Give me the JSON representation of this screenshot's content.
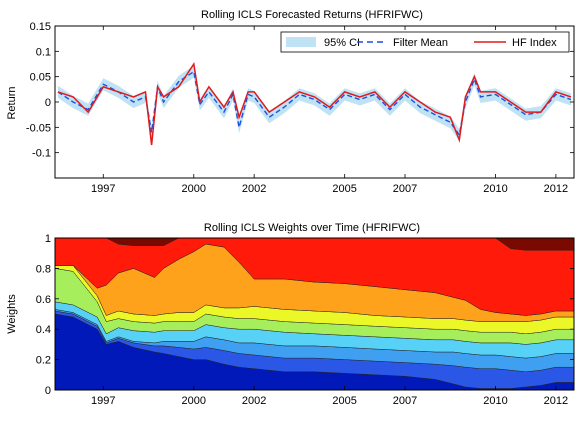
{
  "chart_data": [
    {
      "type": "line",
      "title": "Rolling ICLS Forecasted Returns (HFRIFWC)",
      "ylabel": "Return",
      "xlim": [
        1995.4,
        2012.6
      ],
      "ylim": [
        -0.15,
        0.15
      ],
      "yticks": [
        -0.1,
        -0.05,
        0,
        0.05,
        0.1,
        0.15
      ],
      "ytick_labels": [
        "-0.1",
        "-0.05",
        "0",
        "0.05",
        "0.1",
        "0.15"
      ],
      "xticks": [
        1997.0,
        2000.0,
        2002.0,
        2005.0,
        2007.0,
        2010.0,
        2012.0
      ],
      "xtick_labels": [
        "1997",
        "2000",
        "2002",
        "2005",
        "2007",
        "2010",
        "2012"
      ],
      "legend": {
        "position": "top-right",
        "entries": [
          "95% CI",
          "Filter Mean",
          "HF Index"
        ]
      },
      "colors": {
        "ci": "#bfe3f5",
        "filter_mean": "#1f4fe0",
        "hf_index": "#e01b1b"
      },
      "x": [
        1995.5,
        1996.0,
        1996.5,
        1997.0,
        1997.5,
        1998.0,
        1998.4,
        1998.6,
        1998.8,
        1999.0,
        1999.5,
        2000.0,
        2000.2,
        2000.5,
        2001.0,
        2001.3,
        2001.5,
        2001.8,
        2002.0,
        2002.5,
        2003.0,
        2003.5,
        2004.0,
        2004.5,
        2005.0,
        2005.5,
        2006.0,
        2006.5,
        2007.0,
        2007.5,
        2008.0,
        2008.5,
        2008.8,
        2009.0,
        2009.3,
        2009.5,
        2010.0,
        2010.5,
        2011.0,
        2011.5,
        2012.0,
        2012.5
      ],
      "series": [
        {
          "name": "HF Index",
          "values": [
            0.02,
            0.01,
            -0.02,
            0.03,
            0.02,
            0.01,
            0.02,
            -0.085,
            0.03,
            0.01,
            0.03,
            0.075,
            0.0,
            0.03,
            -0.01,
            0.02,
            -0.03,
            0.02,
            0.02,
            -0.02,
            0.0,
            0.02,
            0.01,
            -0.01,
            0.02,
            0.01,
            0.02,
            -0.01,
            0.02,
            0.0,
            -0.02,
            -0.03,
            -0.075,
            0.01,
            0.05,
            0.02,
            0.02,
            0.0,
            -0.02,
            -0.02,
            0.02,
            0.01
          ]
        },
        {
          "name": "Filter Mean",
          "values": [
            0.02,
            0.0,
            -0.015,
            0.035,
            0.02,
            0.0,
            0.01,
            -0.06,
            0.03,
            0.0,
            0.04,
            0.06,
            -0.005,
            0.02,
            -0.02,
            0.015,
            -0.05,
            0.015,
            0.01,
            -0.03,
            -0.01,
            0.015,
            0.005,
            -0.015,
            0.015,
            0.005,
            0.015,
            -0.015,
            0.015,
            -0.01,
            -0.025,
            -0.04,
            -0.065,
            0.0,
            0.045,
            0.01,
            0.015,
            -0.005,
            -0.025,
            -0.02,
            0.015,
            0.005
          ]
        }
      ],
      "ci_halfwidth": 0.012
    },
    {
      "type": "area",
      "stacked": true,
      "title": "Rolling ICLS Weights over Time (HFRIFWC)",
      "ylabel": "Weights",
      "xlim": [
        1995.4,
        2012.6
      ],
      "ylim": [
        0,
        1
      ],
      "yticks": [
        0,
        0.2,
        0.4,
        0.6,
        0.8,
        1
      ],
      "ytick_labels": [
        "0",
        "0.2",
        "0.4",
        "0.6",
        "0.8",
        "1"
      ],
      "xticks": [
        1997.0,
        2000.0,
        2002.0,
        2005.0,
        2007.0,
        2010.0,
        2012.0
      ],
      "xtick_labels": [
        "1997",
        "2000",
        "2002",
        "2005",
        "2007",
        "2010",
        "2012"
      ],
      "x": [
        1995.4,
        1996.0,
        1996.8,
        1997.1,
        1997.5,
        1998.0,
        1998.7,
        1999.0,
        1999.5,
        2000.0,
        2000.4,
        2001.0,
        2001.5,
        2002.0,
        2003.0,
        2004.0,
        2005.0,
        2006.0,
        2007.0,
        2008.0,
        2008.6,
        2009.0,
        2009.5,
        2010.0,
        2010.5,
        2011.0,
        2011.5,
        2012.0,
        2012.6
      ],
      "colors": [
        "#0019b8",
        "#2a57e6",
        "#3fa0f2",
        "#58d1f7",
        "#a6ee5c",
        "#ecf728",
        "#ffa21b",
        "#ff1a0a",
        "#7a0a00"
      ],
      "layers": [
        [
          0.5,
          0.48,
          0.4,
          0.3,
          0.32,
          0.28,
          0.25,
          0.24,
          0.22,
          0.2,
          0.2,
          0.17,
          0.15,
          0.14,
          0.12,
          0.12,
          0.11,
          0.1,
          0.09,
          0.07,
          0.04,
          0.02,
          0.01,
          0.01,
          0.01,
          0.02,
          0.03,
          0.05,
          0.05
        ],
        [
          0.02,
          0.02,
          0.02,
          0.01,
          0.02,
          0.03,
          0.04,
          0.05,
          0.06,
          0.07,
          0.08,
          0.09,
          0.09,
          0.09,
          0.09,
          0.09,
          0.09,
          0.09,
          0.09,
          0.1,
          0.12,
          0.13,
          0.13,
          0.13,
          0.12,
          0.1,
          0.1,
          0.1,
          0.1
        ],
        [
          0.01,
          0.01,
          0.01,
          0.01,
          0.01,
          0.01,
          0.02,
          0.03,
          0.04,
          0.05,
          0.07,
          0.07,
          0.07,
          0.08,
          0.08,
          0.08,
          0.08,
          0.08,
          0.08,
          0.08,
          0.09,
          0.09,
          0.09,
          0.09,
          0.09,
          0.09,
          0.09,
          0.09,
          0.09
        ],
        [
          0.05,
          0.05,
          0.05,
          0.05,
          0.06,
          0.07,
          0.07,
          0.07,
          0.07,
          0.07,
          0.08,
          0.08,
          0.09,
          0.09,
          0.09,
          0.08,
          0.08,
          0.08,
          0.08,
          0.08,
          0.08,
          0.08,
          0.08,
          0.08,
          0.09,
          0.09,
          0.09,
          0.09,
          0.09
        ],
        [
          0.22,
          0.22,
          0.1,
          0.08,
          0.06,
          0.06,
          0.06,
          0.06,
          0.06,
          0.06,
          0.07,
          0.07,
          0.07,
          0.07,
          0.07,
          0.07,
          0.07,
          0.07,
          0.07,
          0.07,
          0.07,
          0.07,
          0.07,
          0.07,
          0.07,
          0.07,
          0.07,
          0.07,
          0.07
        ],
        [
          0.02,
          0.04,
          0.04,
          0.04,
          0.05,
          0.05,
          0.05,
          0.05,
          0.06,
          0.06,
          0.06,
          0.06,
          0.07,
          0.08,
          0.08,
          0.08,
          0.08,
          0.07,
          0.07,
          0.07,
          0.07,
          0.07,
          0.07,
          0.07,
          0.07,
          0.08,
          0.08,
          0.08,
          0.08
        ],
        [
          0.0,
          0.0,
          0.05,
          0.2,
          0.25,
          0.3,
          0.25,
          0.3,
          0.35,
          0.4,
          0.4,
          0.4,
          0.3,
          0.18,
          0.2,
          0.19,
          0.19,
          0.19,
          0.18,
          0.17,
          0.14,
          0.13,
          0.08,
          0.06,
          0.05,
          0.04,
          0.04,
          0.04,
          0.04
        ],
        [
          0.18,
          0.18,
          0.33,
          0.31,
          0.19,
          0.15,
          0.21,
          0.15,
          0.14,
          0.09,
          0.04,
          0.06,
          0.16,
          0.27,
          0.27,
          0.29,
          0.3,
          0.32,
          0.36,
          0.36,
          0.39,
          0.41,
          0.47,
          0.49,
          0.43,
          0.43,
          0.42,
          0.4,
          0.4
        ],
        [
          0.0,
          0.0,
          0.0,
          0.0,
          0.04,
          0.05,
          0.05,
          0.05,
          0.0,
          0.0,
          0.0,
          0.0,
          0.0,
          0.0,
          0.0,
          0.0,
          0.0,
          0.0,
          0.0,
          0.0,
          0.0,
          0.0,
          0.0,
          0.0,
          0.07,
          0.08,
          0.08,
          0.08,
          0.08
        ]
      ]
    }
  ]
}
